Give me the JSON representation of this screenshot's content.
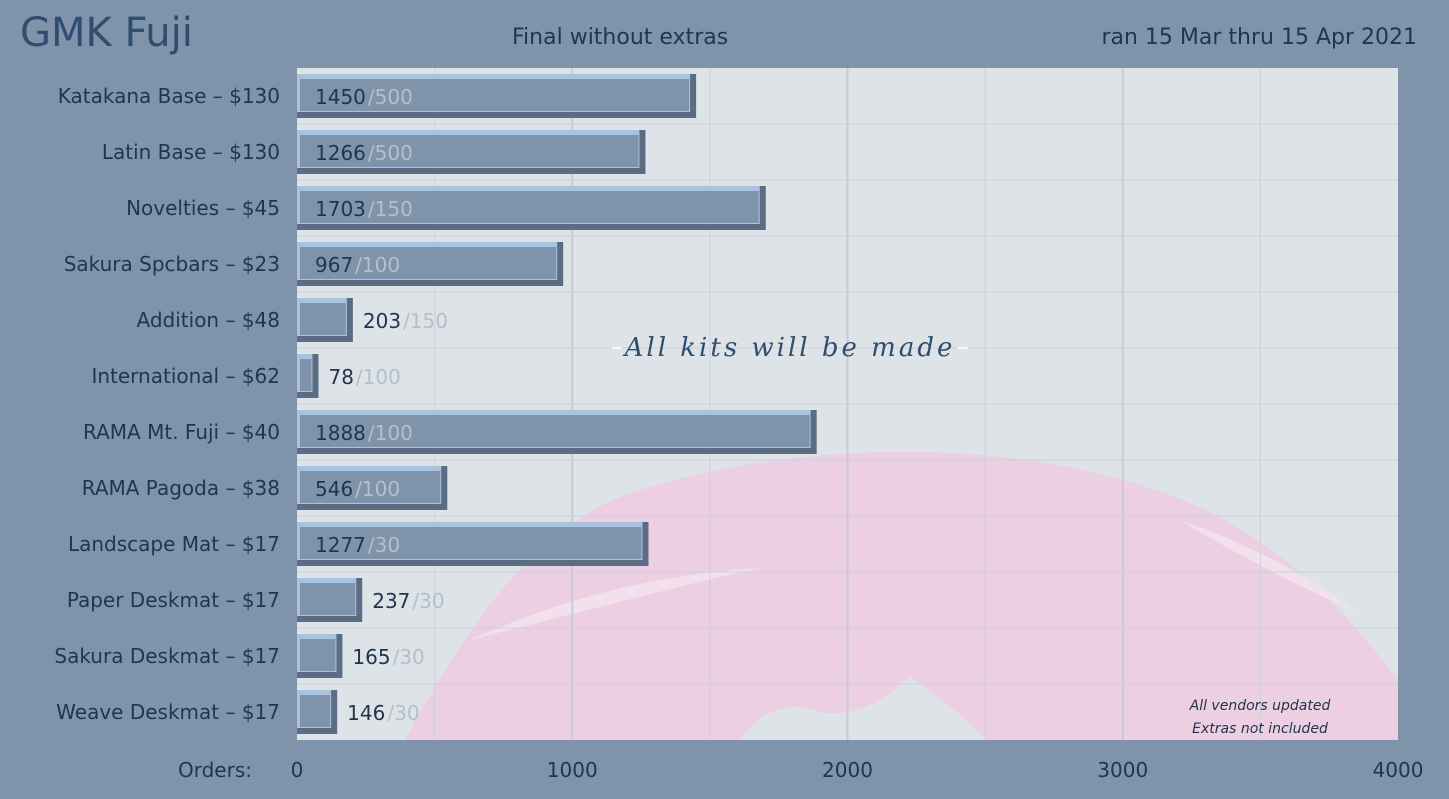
{
  "header": {
    "title": "GMK Fuji",
    "subtitle": "Final without extras",
    "date_range": "ran 15 Mar thru 15 Apr 2021"
  },
  "colors": {
    "page_background": "#7f94ab",
    "plot_background": "#dde3e7",
    "bar_fill": "#7f94ab",
    "bar_top": "#a9c3df",
    "bar_shadow": "#5a6d82",
    "mountain_pink": "#eccfe3",
    "text_dark": "#22354f",
    "text_faint": "#b4bfcc"
  },
  "chart_data": {
    "type": "bar",
    "orientation": "horizontal",
    "xlabel": "Orders:",
    "xlim": [
      0,
      4000
    ],
    "x_ticks": [
      "0",
      "1000",
      "2000",
      "3000",
      "4000"
    ],
    "grid": true,
    "categories": [
      "Katakana Base – $130",
      "Latin Base – $130",
      "Novelties – $45",
      "Sakura Spcbars – $23",
      "Addition – $48",
      "International – $62",
      "RAMA Mt. Fuji – $40",
      "RAMA Pagoda – $38",
      "Landscape Mat – $17",
      "Paper Deskmat – $17",
      "Sakura Deskmat – $17",
      "Weave Deskmat – $17"
    ],
    "values": [
      1450,
      1266,
      1703,
      967,
      203,
      78,
      1888,
      546,
      1277,
      237,
      165,
      146
    ],
    "moq_labels": [
      "/500",
      "/500",
      "/150",
      "/100",
      "/150",
      "/100",
      "/100",
      "/100",
      "/30",
      "/30",
      "/30",
      "/30"
    ],
    "moq": [
      500,
      500,
      150,
      100,
      150,
      100,
      100,
      100,
      30,
      30,
      30,
      30
    ],
    "annotation": "All kits will be made",
    "notes": [
      "All vendors updated",
      "Extras not included"
    ]
  }
}
